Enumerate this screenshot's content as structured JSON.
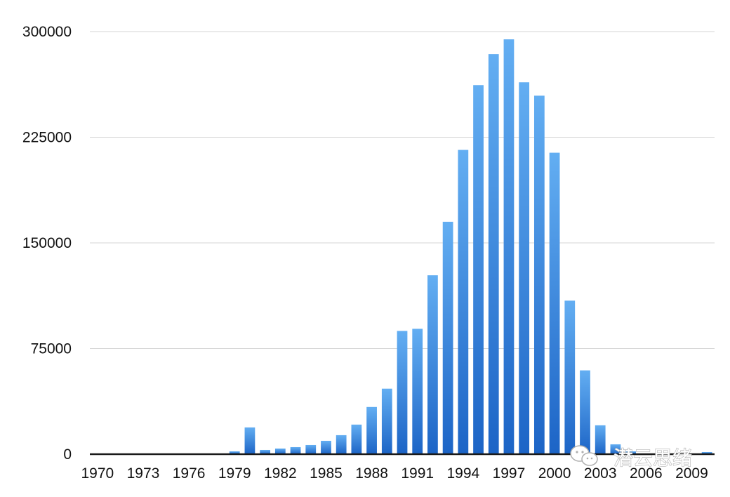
{
  "chart_data": {
    "type": "bar",
    "title": "",
    "xlabel": "",
    "ylabel": "",
    "ylim": [
      0,
      300000
    ],
    "yticks": [
      0,
      75000,
      150000,
      225000,
      300000
    ],
    "ytick_labels": [
      "0",
      "75000",
      "150000",
      "225000",
      "300000"
    ],
    "xtick_labels": [
      "1970",
      "1973",
      "1976",
      "1979",
      "1982",
      "1985",
      "1988",
      "1991",
      "1994",
      "1997",
      "2000",
      "2003",
      "2006",
      "2009"
    ],
    "grid": true,
    "legend": "none",
    "categories": [
      "1970",
      "1971",
      "1972",
      "1973",
      "1974",
      "1975",
      "1976",
      "1977",
      "1978",
      "1979",
      "1980",
      "1981",
      "1982",
      "1983",
      "1984",
      "1985",
      "1986",
      "1987",
      "1988",
      "1989",
      "1990",
      "1991",
      "1992",
      "1993",
      "1994",
      "1995",
      "1996",
      "1997",
      "1998",
      "1999",
      "2000",
      "2001",
      "2002",
      "2003",
      "2004",
      "2005",
      "2006",
      "2007",
      "2008",
      "2009",
      "2010"
    ],
    "values": [
      0,
      0,
      0,
      0,
      0,
      0,
      0,
      0,
      0,
      2000,
      19000,
      3000,
      4000,
      5000,
      6500,
      9500,
      13500,
      21000,
      33500,
      46500,
      87500,
      89000,
      127000,
      165000,
      216000,
      262000,
      284000,
      294500,
      264000,
      254500,
      214000,
      109000,
      59500,
      20500,
      7000,
      2000,
      500,
      200,
      100,
      300,
      1500
    ],
    "colors": {
      "bar_top": "#63aef2",
      "bar_bottom": "#1c64c6",
      "grid": "#d6d6d6",
      "axis": "#1a1a1a"
    }
  },
  "watermark": {
    "text": "潜云思绪",
    "icon": "wechat-icon"
  }
}
